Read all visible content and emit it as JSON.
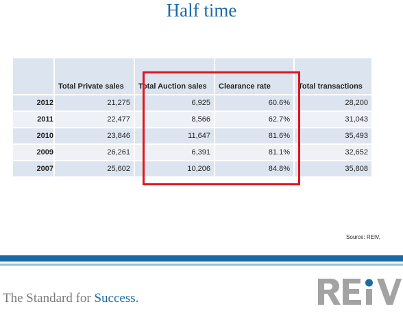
{
  "slide": {
    "title": "Half time",
    "source": "Source: REIV,"
  },
  "table": {
    "headers": [
      "",
      "Total Private sales",
      "Total Auction sales",
      "Clearance rate",
      "Total transactions"
    ],
    "rows": [
      [
        "2012",
        "21,275",
        "6,925",
        "60.6%",
        "28,200"
      ],
      [
        "2011",
        "22,477",
        "8,566",
        "62.7%",
        "31,043"
      ],
      [
        "2010",
        "23,846",
        "11,647",
        "81.6%",
        "35,493"
      ],
      [
        "2009",
        "26,261",
        "6,391",
        "81.1%",
        "32,652"
      ],
      [
        "2007",
        "25,602",
        "10,206",
        "84.8%",
        "35,808"
      ]
    ]
  },
  "footer": {
    "tagline_prefix": "The Standard for ",
    "tagline_emphasis": "Success.",
    "logo_text": "REIV"
  },
  "colors": {
    "brand_blue": "#1a6aa6",
    "highlight_red": "#e0141e",
    "logo_grey": "#a3a3a3"
  }
}
